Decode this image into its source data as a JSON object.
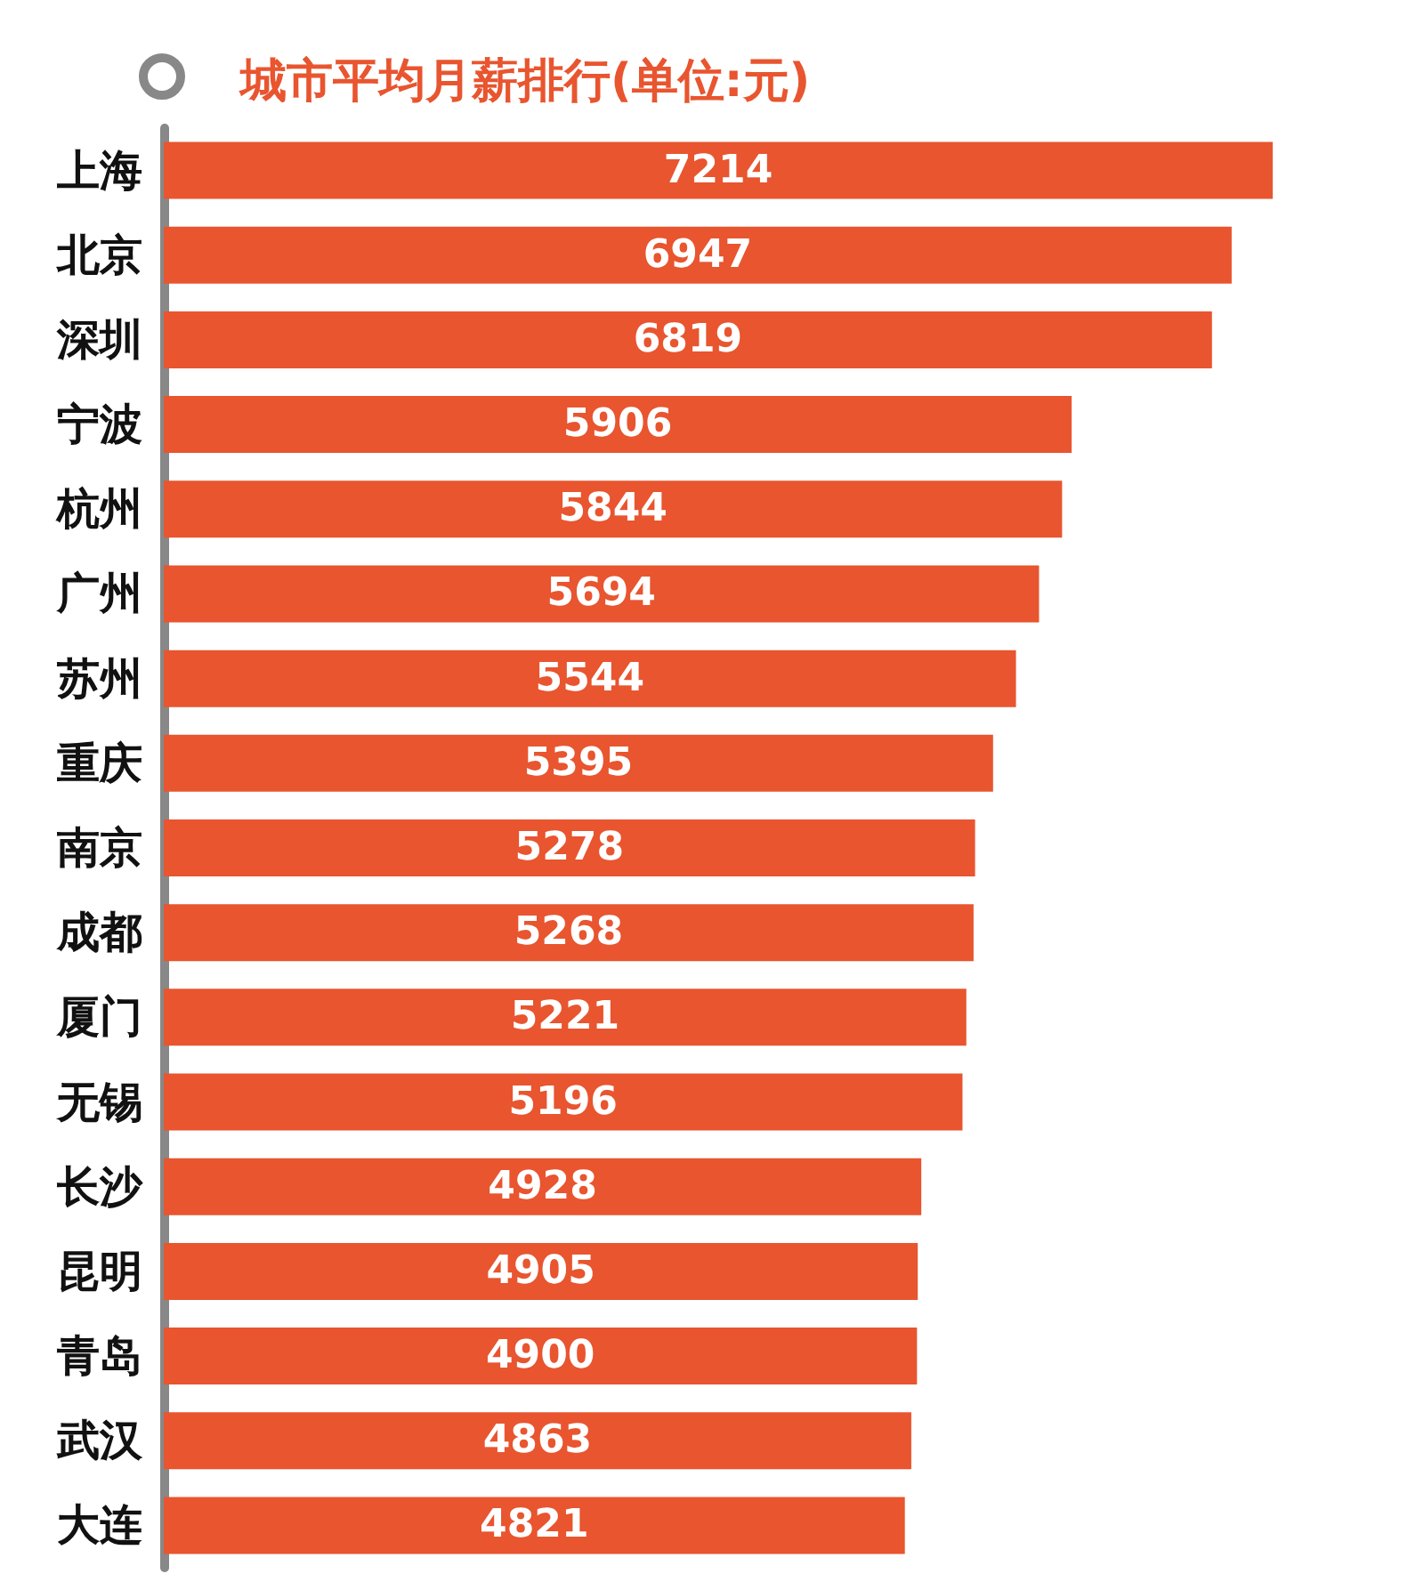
{
  "chart_data": {
    "type": "bar",
    "orientation": "horizontal",
    "title": "城市平均月薪排行(单位:元)",
    "categories": [
      "上海",
      "北京",
      "深圳",
      "宁波",
      "杭州",
      "广州",
      "苏州",
      "重庆",
      "南京",
      "成都",
      "厦门",
      "无锡",
      "长沙",
      "昆明",
      "青岛",
      "武汉",
      "大连"
    ],
    "values": [
      7214,
      6947,
      6819,
      5906,
      5844,
      5694,
      5544,
      5395,
      5278,
      5268,
      5221,
      5196,
      4928,
      4905,
      4900,
      4863,
      4821
    ],
    "color": "#e8552f",
    "data_labels": true
  }
}
